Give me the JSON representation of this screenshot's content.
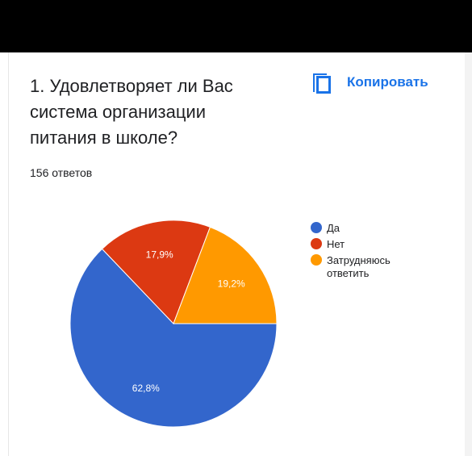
{
  "question": {
    "title": "1. Удовлетворяет ли Вас система организации питания в школе?",
    "responses": "156 ответов"
  },
  "copy_button": {
    "label": "Копировать",
    "icon": "copy-icon"
  },
  "colors": {
    "accent": "#1a73e8",
    "text": "#202124"
  },
  "chart_data": {
    "type": "pie",
    "labels": [
      "Да",
      "Нет",
      "Затрудняюсь ответить"
    ],
    "values": [
      62.8,
      17.9,
      19.2
    ],
    "value_labels": [
      "62,8%",
      "17,9%",
      "19,2%"
    ],
    "colors": [
      "#3366cc",
      "#dc3912",
      "#ff9900"
    ],
    "legend_position": "right",
    "start": "bottom-right, clockwise to Да"
  }
}
